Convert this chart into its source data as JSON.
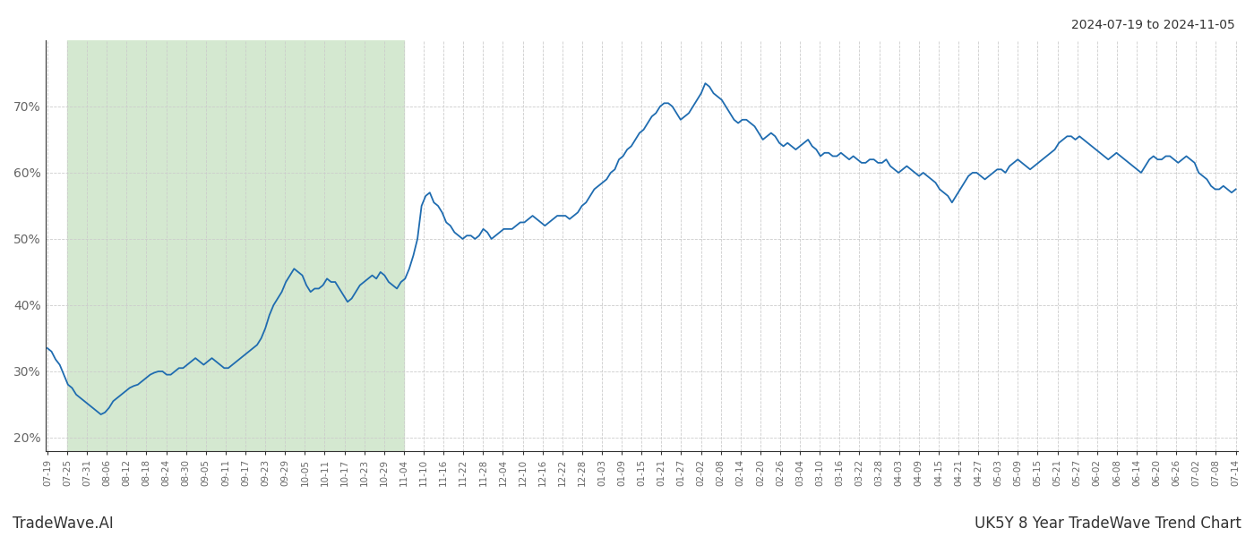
{
  "title_top_right": "2024-07-19 to 2024-11-05",
  "bottom_left": "TradeWave.AI",
  "bottom_right": "UK5Y 8 Year TradeWave Trend Chart",
  "line_color": "#1f6cb0",
  "shade_color": "#d4e8d0",
  "bg_color": "#ffffff",
  "grid_color": "#cccccc",
  "axis_color": "#333333",
  "shade_start_date": "07-25",
  "shade_end_date": "11-04",
  "ylim": [
    18,
    80
  ],
  "yticks": [
    20,
    30,
    40,
    50,
    60,
    70
  ],
  "tick_labels": [
    "07-19",
    "07-25",
    "07-31",
    "08-06",
    "08-12",
    "08-18",
    "08-24",
    "08-30",
    "09-05",
    "09-11",
    "09-17",
    "09-23",
    "09-29",
    "10-05",
    "10-11",
    "10-17",
    "10-23",
    "10-29",
    "11-04",
    "11-10",
    "11-16",
    "11-22",
    "11-28",
    "12-04",
    "12-10",
    "12-16",
    "12-22",
    "12-28",
    "01-03",
    "01-09",
    "01-15",
    "01-21",
    "01-27",
    "02-02",
    "02-08",
    "02-14",
    "02-20",
    "02-26",
    "03-04",
    "03-10",
    "03-16",
    "03-22",
    "03-28",
    "04-03",
    "04-09",
    "04-15",
    "04-21",
    "04-27",
    "05-03",
    "05-09",
    "05-15",
    "05-21",
    "05-27",
    "06-02",
    "06-08",
    "06-14",
    "06-20",
    "06-26",
    "07-02",
    "07-08",
    "07-14"
  ],
  "values": [
    33.5,
    33.0,
    31.8,
    31.0,
    29.5,
    28.0,
    27.5,
    26.5,
    26.0,
    25.5,
    25.0,
    24.5,
    24.0,
    23.5,
    23.8,
    24.5,
    25.5,
    26.0,
    26.5,
    27.0,
    27.5,
    27.8,
    28.0,
    28.5,
    29.0,
    29.5,
    29.8,
    30.0,
    30.0,
    29.5,
    29.5,
    30.0,
    30.5,
    30.5,
    31.0,
    31.5,
    32.0,
    31.5,
    31.0,
    31.5,
    32.0,
    31.5,
    31.0,
    30.5,
    30.5,
    31.0,
    31.5,
    32.0,
    32.5,
    33.0,
    33.5,
    34.0,
    35.0,
    36.5,
    38.5,
    40.0,
    41.0,
    42.0,
    43.5,
    44.5,
    45.5,
    45.0,
    44.5,
    43.0,
    42.0,
    42.5,
    42.5,
    43.0,
    44.0,
    43.5,
    43.5,
    42.5,
    41.5,
    40.5,
    41.0,
    42.0,
    43.0,
    43.5,
    44.0,
    44.5,
    44.0,
    45.0,
    44.5,
    43.5,
    43.0,
    42.5,
    43.5,
    44.0,
    45.5,
    47.5,
    50.0,
    55.0,
    56.5,
    57.0,
    55.5,
    55.0,
    54.0,
    52.5,
    52.0,
    51.0,
    50.5,
    50.0,
    50.5,
    50.5,
    50.0,
    50.5,
    51.5,
    51.0,
    50.0,
    50.5,
    51.0,
    51.5,
    51.5,
    51.5,
    52.0,
    52.5,
    52.5,
    53.0,
    53.5,
    53.0,
    52.5,
    52.0,
    52.5,
    53.0,
    53.5,
    53.5,
    53.5,
    53.0,
    53.5,
    54.0,
    55.0,
    55.5,
    56.5,
    57.5,
    58.0,
    58.5,
    59.0,
    60.0,
    60.5,
    62.0,
    62.5,
    63.5,
    64.0,
    65.0,
    66.0,
    66.5,
    67.5,
    68.5,
    69.0,
    70.0,
    70.5,
    70.5,
    70.0,
    69.0,
    68.0,
    68.5,
    69.0,
    70.0,
    71.0,
    72.0,
    73.5,
    73.0,
    72.0,
    71.5,
    71.0,
    70.0,
    69.0,
    68.0,
    67.5,
    68.0,
    68.0,
    67.5,
    67.0,
    66.0,
    65.0,
    65.5,
    66.0,
    65.5,
    64.5,
    64.0,
    64.5,
    64.0,
    63.5,
    64.0,
    64.5,
    65.0,
    64.0,
    63.5,
    62.5,
    63.0,
    63.0,
    62.5,
    62.5,
    63.0,
    62.5,
    62.0,
    62.5,
    62.0,
    61.5,
    61.5,
    62.0,
    62.0,
    61.5,
    61.5,
    62.0,
    61.0,
    60.5,
    60.0,
    60.5,
    61.0,
    60.5,
    60.0,
    59.5,
    60.0,
    59.5,
    59.0,
    58.5,
    57.5,
    57.0,
    56.5,
    55.5,
    56.5,
    57.5,
    58.5,
    59.5,
    60.0,
    60.0,
    59.5,
    59.0,
    59.5,
    60.0,
    60.5,
    60.5,
    60.0,
    61.0,
    61.5,
    62.0,
    61.5,
    61.0,
    60.5,
    61.0,
    61.5,
    62.0,
    62.5,
    63.0,
    63.5,
    64.5,
    65.0,
    65.5,
    65.5,
    65.0,
    65.5,
    65.0,
    64.5,
    64.0,
    63.5,
    63.0,
    62.5,
    62.0,
    62.5,
    63.0,
    62.5,
    62.0,
    61.5,
    61.0,
    60.5,
    60.0,
    61.0,
    62.0,
    62.5,
    62.0,
    62.0,
    62.5,
    62.5,
    62.0,
    61.5,
    62.0,
    62.5,
    62.0,
    61.5,
    60.0,
    59.5,
    59.0,
    58.0,
    57.5,
    57.5,
    58.0,
    57.5,
    57.0,
    57.5
  ]
}
